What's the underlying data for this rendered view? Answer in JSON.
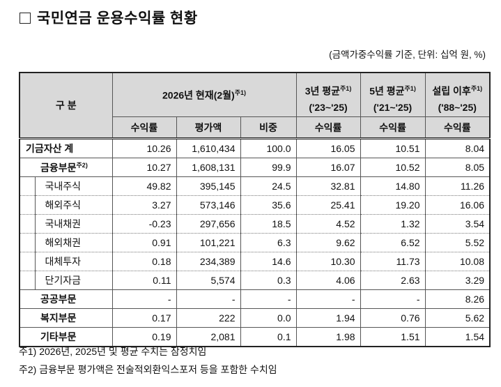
{
  "title": "국민연금 운용수익률 현황",
  "unit_note": "(금액가중수익률 기준, 단위: 십억 원, %)",
  "header": {
    "category": "구 분",
    "current": "2026년 현재(2월)",
    "current_sup": "주1)",
    "avg3": "3년 평균",
    "avg3_sup": "주1)",
    "avg3_range": "('23~'25)",
    "avg5": "5년 평균",
    "avg5_sup": "주1)",
    "avg5_range": "('21~'25)",
    "since": "설립 이후",
    "since_sup": "주1)",
    "since_range": "('88~'25)",
    "sub": [
      "수익률",
      "평가액",
      "비중",
      "수익률",
      "수익률",
      "수익률"
    ]
  },
  "rows": [
    {
      "label": "기금자산 계",
      "sup": "",
      "values": [
        "10.26",
        "1,610,434",
        "100.0",
        "16.05",
        "10.51",
        "8.04"
      ]
    },
    {
      "label": "금융부문",
      "sup": "주2)",
      "values": [
        "10.27",
        "1,608,131",
        "99.9",
        "16.07",
        "10.52",
        "8.05"
      ]
    },
    {
      "label": "국내주식",
      "sup": "",
      "values": [
        "49.82",
        "395,145",
        "24.5",
        "32.81",
        "14.80",
        "11.26"
      ]
    },
    {
      "label": "해외주식",
      "sup": "",
      "values": [
        "3.27",
        "573,146",
        "35.6",
        "25.41",
        "19.20",
        "16.06"
      ]
    },
    {
      "label": "국내채권",
      "sup": "",
      "values": [
        "-0.23",
        "297,656",
        "18.5",
        "4.52",
        "1.32",
        "3.54"
      ]
    },
    {
      "label": "해외채권",
      "sup": "",
      "values": [
        "0.91",
        "101,221",
        "6.3",
        "9.62",
        "6.52",
        "5.52"
      ]
    },
    {
      "label": "대체투자",
      "sup": "",
      "values": [
        "0.18",
        "234,389",
        "14.6",
        "10.30",
        "11.73",
        "10.08"
      ]
    },
    {
      "label": "단기자금",
      "sup": "",
      "values": [
        "0.11",
        "5,574",
        "0.3",
        "4.06",
        "2.63",
        "3.29"
      ]
    },
    {
      "label": "공공부문",
      "sup": "",
      "values": [
        "-",
        "-",
        "-",
        "-",
        "-",
        "8.26"
      ]
    },
    {
      "label": "복지부문",
      "sup": "",
      "values": [
        "0.17",
        "222",
        "0.0",
        "1.94",
        "0.76",
        "5.62"
      ]
    },
    {
      "label": "기타부문",
      "sup": "",
      "values": [
        "0.19",
        "2,081",
        "0.1",
        "1.98",
        "1.51",
        "1.54"
      ]
    }
  ],
  "notes": [
    "주1) 2026년, 2025년 및 평균 수치는 잠정치임",
    "주2) 금융부문 평가액은 전술적외환익스포저 등을 포함한 수치임"
  ]
}
